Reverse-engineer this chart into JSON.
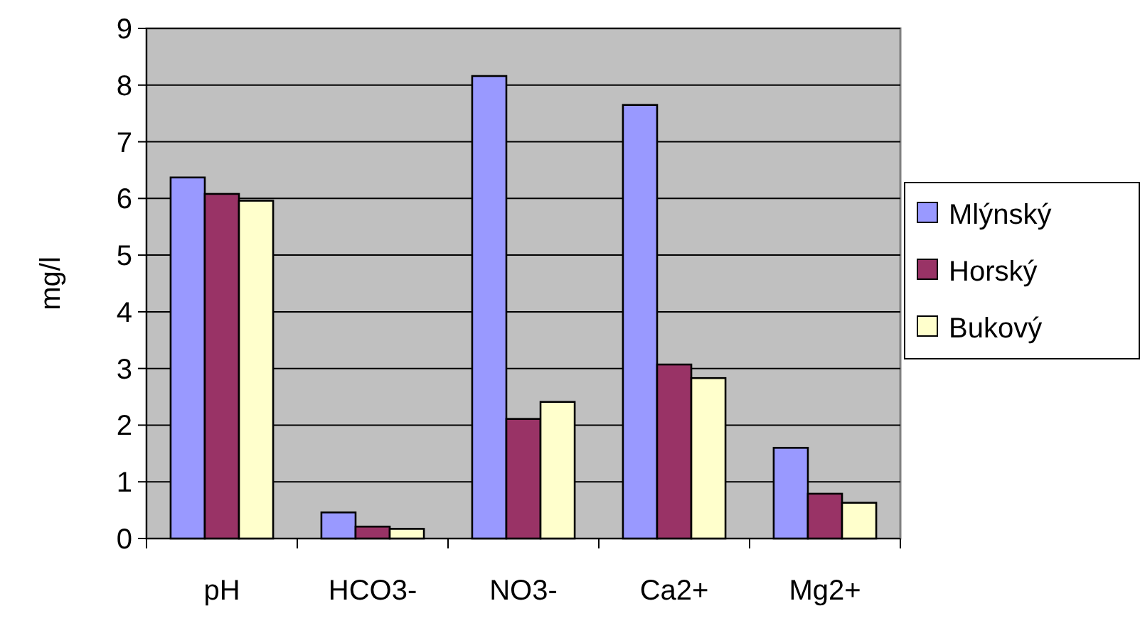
{
  "chart_data": {
    "type": "bar",
    "ylabel": "mg/l",
    "categories": [
      "pH",
      "HCO3-",
      "NO3-",
      "Ca2+",
      "Mg2+"
    ],
    "series": [
      {
        "name": "Mlýnský",
        "color": "#9999ff",
        "values": [
          6.37,
          0.46,
          8.16,
          7.65,
          1.6
        ]
      },
      {
        "name": "Horský",
        "color": "#993366",
        "values": [
          6.08,
          0.21,
          2.11,
          3.07,
          0.79
        ]
      },
      {
        "name": "Bukový",
        "color": "#ffffcc",
        "values": [
          5.96,
          0.17,
          2.41,
          2.83,
          0.63
        ]
      }
    ],
    "ylim": [
      0,
      9
    ],
    "yticks": [
      0,
      1,
      2,
      3,
      4,
      5,
      6,
      7,
      8,
      9
    ],
    "grid": "y",
    "legend": "right"
  }
}
